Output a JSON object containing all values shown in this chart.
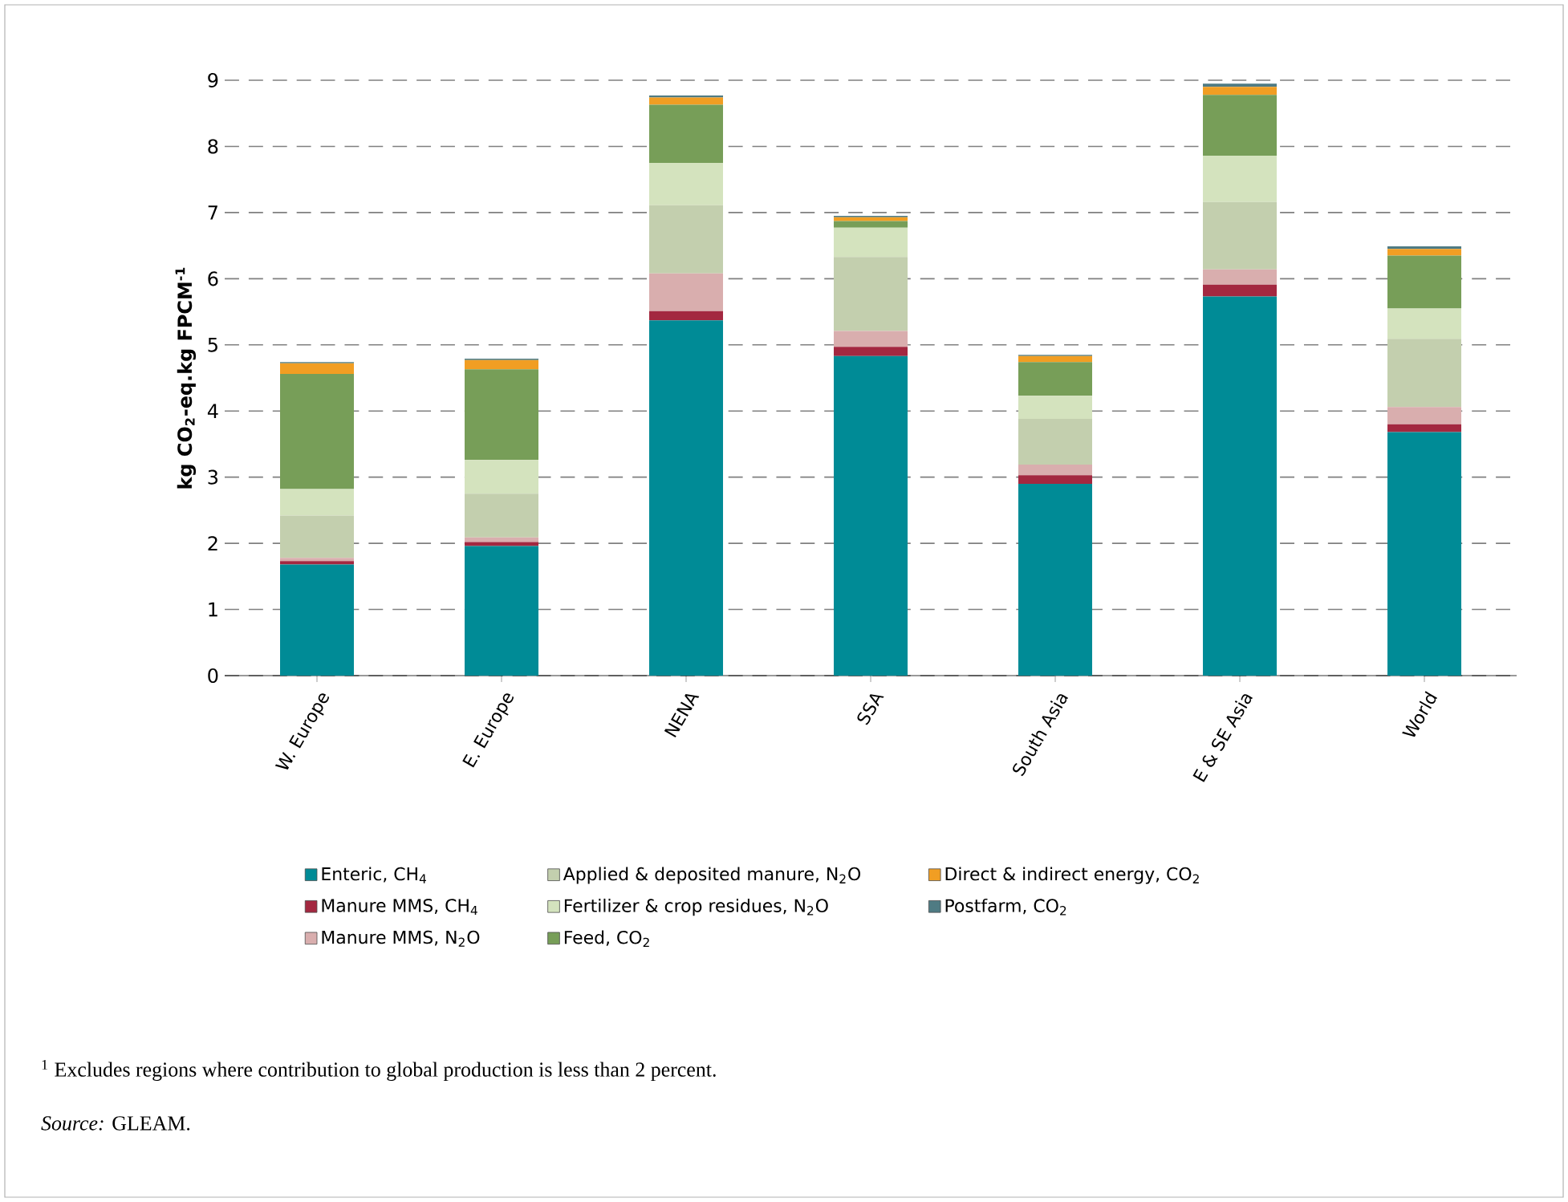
{
  "chart_data": {
    "type": "bar",
    "stacked": true,
    "ylabel": "kg CO$_{2}$-eq.kg FPCM$^{-1}$",
    "categories": [
      "W. Europe",
      "E. Europe",
      "NENA",
      "SSA",
      "South Asia",
      "E & SE Asia",
      "World"
    ],
    "ylim": [
      0,
      9
    ],
    "yticks": [
      0,
      1,
      2,
      3,
      4,
      5,
      6,
      7,
      8,
      9
    ],
    "grid": "y",
    "legend": "bottom",
    "series": [
      {
        "name": "Enteric, CH$_{4}$",
        "color": "#008b96",
        "values": [
          1.68,
          1.96,
          5.37,
          4.83,
          2.9,
          5.73,
          3.68
        ]
      },
      {
        "name": "Manure MMS, CH$_{4}$",
        "color": "#a32840",
        "values": [
          0.05,
          0.06,
          0.14,
          0.14,
          0.13,
          0.18,
          0.12
        ]
      },
      {
        "name": "Manure MMS, N$_{2}$O",
        "color": "#d9aeae",
        "values": [
          0.05,
          0.07,
          0.57,
          0.24,
          0.16,
          0.23,
          0.26
        ]
      },
      {
        "name": "Applied & deposited manure, N$_{2}$O",
        "color": "#c3cfae",
        "values": [
          0.64,
          0.66,
          1.03,
          1.12,
          0.69,
          1.02,
          1.03
        ]
      },
      {
        "name": "Fertilizer & crop residues, N$_{2}$O",
        "color": "#d4e3be",
        "values": [
          0.4,
          0.51,
          0.64,
          0.44,
          0.35,
          0.7,
          0.46
        ]
      },
      {
        "name": "Feed, CO$_{2}$",
        "color": "#779e58",
        "values": [
          1.74,
          1.37,
          0.88,
          0.1,
          0.51,
          0.92,
          0.8
        ]
      },
      {
        "name": "Direct & indirect energy, CO$_{2}$",
        "color": "#f19e23",
        "values": [
          0.16,
          0.14,
          0.11,
          0.06,
          0.09,
          0.12,
          0.1
        ]
      },
      {
        "name": "Postfarm, CO$_{2}$",
        "color": "#4f7b83",
        "values": [
          0.02,
          0.02,
          0.03,
          0.02,
          0.02,
          0.05,
          0.04
        ]
      }
    ],
    "annotations": [
      "$^{1}$ Excludes regions where contribution to global production is less than 2 percent.",
      "*Source:* GLEAM."
    ]
  }
}
